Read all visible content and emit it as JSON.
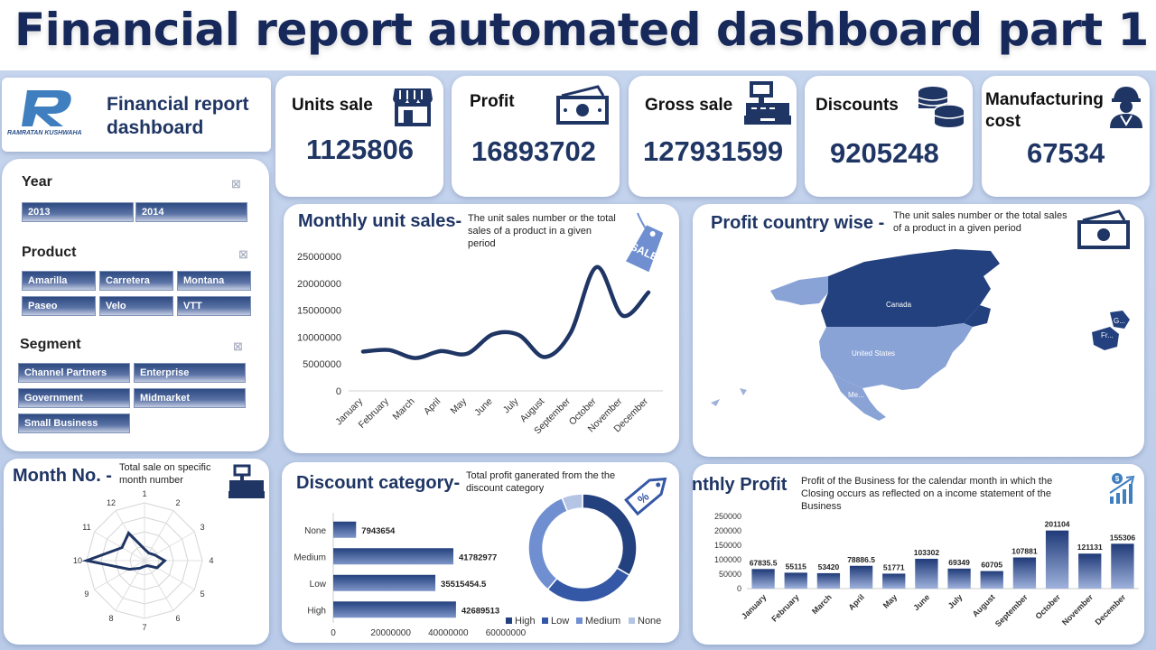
{
  "page_title": "Financial report automated dashboard part 1",
  "brand": {
    "logo_text": "RAMRATAN KUSHWAHA",
    "dashboard_title_line1": "Financial report",
    "dashboard_title_line2": "dashboard"
  },
  "kpis": [
    {
      "label": "Units sale",
      "value": "1125806",
      "icon": "store-icon"
    },
    {
      "label": "Profit",
      "value": "16893702",
      "icon": "cash-icon"
    },
    {
      "label": "Gross sale",
      "value": "127931599",
      "icon": "cash-register-icon"
    },
    {
      "label": "Discounts",
      "value": "9205248",
      "icon": "coins-icon"
    },
    {
      "label": "Manufacturing cost",
      "label_line1": "Manufacturing",
      "label_line2": "cost",
      "value": "67534",
      "icon": "worker-icon"
    }
  ],
  "slicers": {
    "year": {
      "title": "Year",
      "items": [
        "2013",
        "2014"
      ]
    },
    "product": {
      "title": "Product",
      "items": [
        "Amarilla",
        "Carretera",
        "Montana",
        "Paseo",
        "Velo",
        "VTT"
      ]
    },
    "segment": {
      "title": "Segment",
      "items": [
        "Channel Partners",
        "Enterprise",
        "Government",
        "Midmarket",
        "Small Business"
      ]
    }
  },
  "monthly_unit_sales": {
    "title": "Monthly unit sales-",
    "note": "The unit sales number or the total sales of a product in a given period",
    "badge": "SALE"
  },
  "profit_country": {
    "title": "Profit country wise -",
    "note": "The unit sales number or the total sales of a product in a given period",
    "labels": {
      "canada": "Canada",
      "us": "United States",
      "mexico": "Me...",
      "france": "Fr...",
      "germany": "G..."
    }
  },
  "month_no": {
    "title": "Month No. -",
    "note": "Total  sale on specific month number"
  },
  "discount_category": {
    "title": "Discount category-",
    "note": "Total profit ganerated from the the discount category",
    "legend": [
      "High",
      "Low",
      "Medium",
      "None"
    ],
    "colors": [
      "#23417e",
      "#3558a6",
      "#6f8fd0",
      "#b4c4e4"
    ]
  },
  "monthly_profit": {
    "title": "Monthly Profit",
    "note": "Profit of the Business for the calendar month in which the Closing occurs as reflected on a income statement of the Business"
  },
  "chart_data": [
    {
      "type": "line",
      "title": "Monthly unit sales-",
      "categories": [
        "January",
        "February",
        "March",
        "April",
        "May",
        "June",
        "July",
        "August",
        "September",
        "October",
        "November",
        "December"
      ],
      "values": [
        7300000,
        7600000,
        6100000,
        7400000,
        6900000,
        10500000,
        10400000,
        6300000,
        10800000,
        23000000,
        14000000,
        18300000
      ],
      "ylim": [
        0,
        25000000
      ],
      "yticks": [
        "0",
        "5000000",
        "10000000",
        "15000000",
        "20000000",
        "25000000"
      ],
      "ytick_values": [
        0,
        5000000,
        10000000,
        15000000,
        20000000,
        25000000
      ],
      "color": "#1f3564"
    },
    {
      "type": "radar",
      "title": "Month No. -",
      "categories": [
        "1",
        "2",
        "3",
        "4",
        "5",
        "6",
        "7",
        "8",
        "9",
        "10",
        "11",
        "12"
      ],
      "values": [
        0.2,
        0.15,
        0.2,
        0.35,
        0.25,
        0.1,
        0.1,
        0.15,
        0.3,
        1.0,
        0.45,
        0.55
      ],
      "color": "#1f3564"
    },
    {
      "type": "bar",
      "title": "Discount category-",
      "orientation": "horizontal",
      "categories": [
        "None",
        "Medium",
        "Low",
        "High"
      ],
      "values": [
        7943654,
        41782977,
        35515454.5,
        42689513
      ],
      "labels": [
        "7943654",
        "41782977",
        "35515454.5",
        "42689513"
      ],
      "xlim": [
        0,
        60000000
      ],
      "xticks": [
        "0",
        "20000000",
        "40000000",
        "60000000"
      ],
      "xtick_values": [
        0,
        20000000,
        40000000,
        60000000
      ]
    },
    {
      "type": "pie",
      "donut": true,
      "categories": [
        "High",
        "Low",
        "Medium",
        "None"
      ],
      "values": [
        42689513,
        35515454.5,
        41782977,
        7943654
      ]
    },
    {
      "type": "bar",
      "title": "Monthly Profit",
      "categories": [
        "January",
        "February",
        "March",
        "April",
        "May",
        "June",
        "July",
        "August",
        "September",
        "October",
        "November",
        "December"
      ],
      "values": [
        67835.5,
        55115,
        53420,
        78886.5,
        51771,
        103302,
        69349,
        60705,
        107881,
        201104,
        121131,
        155306
      ],
      "labels": [
        "67835.5",
        "55115",
        "53420",
        "78886.5",
        "51771",
        "103302",
        "69349",
        "60705",
        "107881",
        "201104",
        "121131",
        "155306"
      ],
      "ylim": [
        0,
        250000
      ],
      "yticks": [
        "0",
        "50000",
        "100000",
        "150000",
        "200000",
        "250000"
      ],
      "ytick_values": [
        0,
        50000,
        100000,
        150000,
        200000,
        250000
      ]
    }
  ]
}
